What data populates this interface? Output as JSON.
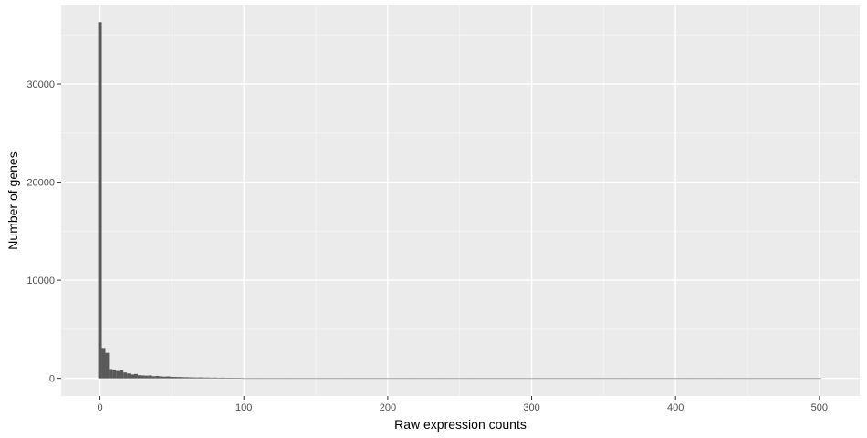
{
  "chart_data": {
    "type": "bar",
    "subtype": "histogram",
    "title": "",
    "xlabel": "Raw expression counts",
    "ylabel": "Number of genes",
    "xlim": [
      -27,
      528
    ],
    "ylim": [
      -1800,
      38000
    ],
    "x_ticks": [
      0,
      100,
      200,
      300,
      400,
      500
    ],
    "y_ticks": [
      0,
      10000,
      20000,
      30000
    ],
    "x_tick_labels": [
      "0",
      "100",
      "200",
      "300",
      "400",
      "500"
    ],
    "y_tick_labels": [
      "0",
      "10000",
      "20000",
      "30000"
    ],
    "bin_width": 2.5,
    "bin_start": -1.25,
    "bin_count": 201,
    "values_first_bins": [
      36300,
      3100,
      2600,
      950,
      900,
      750,
      850,
      600,
      500,
      400,
      450,
      320,
      300,
      280,
      300,
      220,
      250,
      200,
      180,
      200,
      160,
      150,
      140,
      130,
      120,
      110,
      100,
      90,
      100,
      80,
      85,
      70,
      80,
      60,
      70,
      55,
      60,
      50,
      55,
      45
    ],
    "tail_value": 10,
    "grid": true,
    "legend": "none",
    "colors": {
      "bar": "#595959",
      "panel": "#ebebeb",
      "grid_major": "#ffffff",
      "tick": "#333333",
      "tick_label": "#4d4d4d"
    }
  }
}
